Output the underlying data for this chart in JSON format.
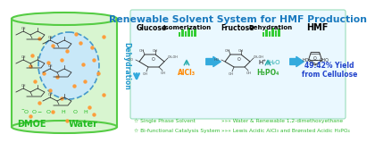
{
  "title": "Renewable Solvent System for HMF Production",
  "title_color": "#1a7abf",
  "title_fontsize": 7.8,
  "bg_color": "#ffffff",
  "fig_width": 3.78,
  "fig_height": 1.49,
  "cylinder_bg": "#d8f5d0",
  "cylinder_border": "#55cc44",
  "circle_bg": "#c8e8f8",
  "circle_border": "#4499cc",
  "dmoe_color": "#22bb22",
  "water_color": "#22bb22",
  "dehydration_color": "#2299cc",
  "arrow_blue": "#33aadd",
  "arrow_teal": "#22aaaa",
  "glucose_label": "Glucose",
  "isomerization_label": "Isomerization",
  "fructose_label": "Fructose",
  "dehydration_label": "Dehydration",
  "hmf_label": "HMF",
  "alcl3_label": "AlCl₃",
  "alcl3_color": "#ff8800",
  "h3po4_label": "H₃PO₄",
  "h3po4_color": "#33aa33",
  "h2o_label": "H₂O",
  "hplus_label": "H⁺",
  "yield_line1": "49.42% Yield",
  "yield_line2": "from Cellulose",
  "yield_color": "#2244cc",
  "legend1a": "☆ Single Phase Solvent",
  "legend2a": "☆ Bi-functional Catalysis System",
  "legend1b": "»»» Water & Renewable 1,2-dimethoxyethane",
  "legend2b": "»»» Lewis Acidic AlCl₃ and Brønsted Acidic H₃PO₄",
  "legend_color": "#33bb33",
  "bar_green": "#33cc33",
  "panel_bg": "#eaf8ff",
  "panel_border": "#99ddbb"
}
